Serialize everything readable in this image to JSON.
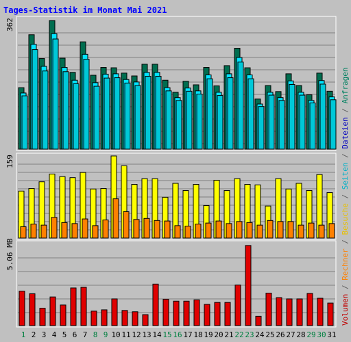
{
  "title": "Tages-Statistik im Monat Mai 2021",
  "colors": {
    "background": "#c0c0c0",
    "title": "#0000ff",
    "anfragen": "#006d4f",
    "dateien": "#00e4ff",
    "seiten": "#00c8d8",
    "besuche": "#ffff00",
    "rechner": "#ff8000",
    "volumen": "#e00000",
    "weekend_label": "#008040",
    "weekday_label": "#000000",
    "grid": "#808080"
  },
  "legend": [
    {
      "key": "volumen",
      "text": "Volumen",
      "color": "#c00000"
    },
    {
      "key": "sep1",
      "text": " / ",
      "color": "#606060"
    },
    {
      "key": "rechner",
      "text": "Rechner",
      "color": "#ff8000"
    },
    {
      "key": "sep2",
      "text": " / ",
      "color": "#606060"
    },
    {
      "key": "besuche",
      "text": "Besuche",
      "color": "#e8c000"
    },
    {
      "key": "sep3",
      "text": " / ",
      "color": "#606060"
    },
    {
      "key": "seiten",
      "text": "Seiten",
      "color": "#00b0c8"
    },
    {
      "key": "sep4",
      "text": " / ",
      "color": "#606060"
    },
    {
      "key": "dateien",
      "text": "Dateien",
      "color": "#0000c0"
    },
    {
      "key": "sep5",
      "text": " / ",
      "color": "#606060"
    },
    {
      "key": "anfragen",
      "text": "Anfragen",
      "color": "#008060"
    }
  ],
  "chart_data": [
    {
      "type": "bar",
      "panel": "hits",
      "ymax_label": "362",
      "ylim": [
        0,
        362
      ],
      "categories": [
        "1",
        "2",
        "3",
        "4",
        "5",
        "6",
        "7",
        "8",
        "9",
        "10",
        "11",
        "12",
        "13",
        "14",
        "15",
        "16",
        "17",
        "18",
        "19",
        "20",
        "21",
        "22",
        "23",
        "24",
        "25",
        "26",
        "27",
        "28",
        "29",
        "30",
        "31"
      ],
      "series": [
        {
          "name": "Anfragen",
          "values": [
            173,
            322,
            255,
            362,
            256,
            216,
            302,
            208,
            230,
            229,
            214,
            206,
            239,
            239,
            194,
            160,
            191,
            181,
            230,
            178,
            235,
            284,
            229,
            141,
            179,
            162,
            212,
            179,
            153,
            214,
            163
          ]
        },
        {
          "name": "Dateien",
          "values": [
            158,
            295,
            233,
            325,
            230,
            194,
            267,
            187,
            211,
            212,
            196,
            189,
            216,
            216,
            173,
            145,
            172,
            164,
            209,
            160,
            212,
            258,
            209,
            127,
            160,
            145,
            192,
            160,
            137,
            193,
            147
          ]
        },
        {
          "name": "Seiten",
          "values": [
            150,
            280,
            220,
            310,
            218,
            184,
            253,
            177,
            200,
            201,
            186,
            179,
            205,
            205,
            164,
            137,
            163,
            155,
            198,
            151,
            201,
            245,
            198,
            120,
            152,
            137,
            182,
            152,
            130,
            183,
            139
          ]
        }
      ],
      "weekend_days": [
        "1",
        "8",
        "9",
        "15",
        "16",
        "22",
        "23",
        "29",
        "30"
      ]
    },
    {
      "type": "bar",
      "panel": "visits",
      "ymax_label": "159",
      "ylim": [
        0,
        159
      ],
      "categories": [
        "1",
        "2",
        "3",
        "4",
        "5",
        "6",
        "7",
        "8",
        "9",
        "10",
        "11",
        "12",
        "13",
        "14",
        "15",
        "16",
        "17",
        "18",
        "19",
        "20",
        "21",
        "22",
        "23",
        "24",
        "25",
        "26",
        "27",
        "28",
        "29",
        "30",
        "31"
      ],
      "series": [
        {
          "name": "Besuche",
          "values": [
            91,
            96,
            109,
            124,
            119,
            117,
            127,
            95,
            96,
            159,
            140,
            104,
            115,
            115,
            79,
            106,
            92,
            104,
            63,
            112,
            92,
            115,
            104,
            103,
            62,
            115,
            95,
            106,
            92,
            123,
            88
          ]
        },
        {
          "name": "Rechner",
          "values": [
            22,
            27,
            25,
            40,
            30,
            28,
            37,
            24,
            35,
            76,
            51,
            36,
            38,
            34,
            33,
            24,
            23,
            27,
            29,
            33,
            28,
            32,
            30,
            25,
            34,
            32,
            32,
            25,
            29,
            25,
            28
          ]
        }
      ]
    },
    {
      "type": "bar",
      "panel": "volume",
      "ymax_label": "5.06 MB",
      "ylim": [
        0,
        5.06
      ],
      "categories": [
        "1",
        "2",
        "3",
        "4",
        "5",
        "6",
        "7",
        "8",
        "9",
        "10",
        "11",
        "12",
        "13",
        "14",
        "15",
        "16",
        "17",
        "18",
        "19",
        "20",
        "21",
        "22",
        "23",
        "24",
        "25",
        "26",
        "27",
        "28",
        "29",
        "30",
        "31"
      ],
      "series": [
        {
          "name": "Volumen",
          "values": [
            2.14,
            1.98,
            1.08,
            1.78,
            1.28,
            2.34,
            2.38,
            0.9,
            0.98,
            1.66,
            0.94,
            0.86,
            0.68,
            2.58,
            1.64,
            1.52,
            1.52,
            1.6,
            1.32,
            1.44,
            1.44,
            2.52,
            4.98,
            0.58,
            2.02,
            1.74,
            1.66,
            1.66,
            2.0,
            1.7,
            1.4
          ]
        }
      ]
    }
  ]
}
